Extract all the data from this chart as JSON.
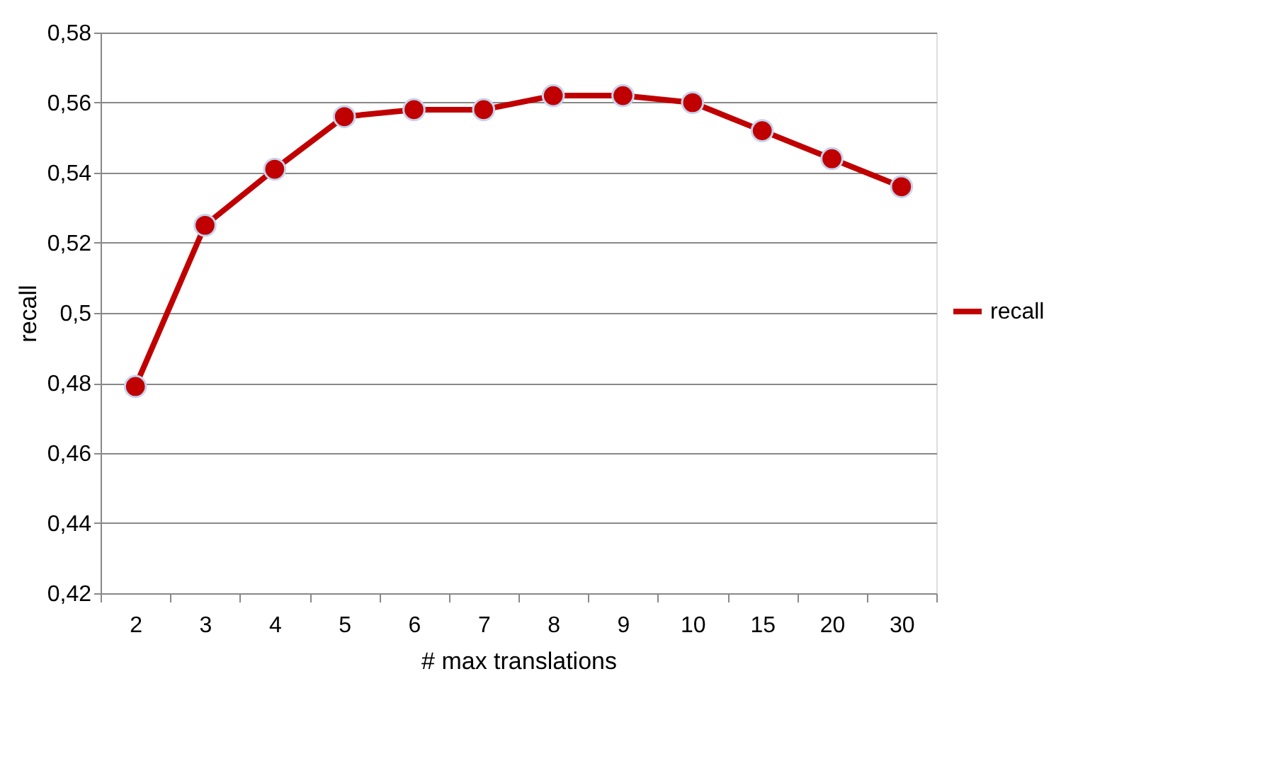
{
  "chart_data": {
    "type": "line",
    "xlabel": "# max translations",
    "ylabel": "recall",
    "categories": [
      "2",
      "3",
      "4",
      "5",
      "6",
      "7",
      "8",
      "9",
      "10",
      "15",
      "20",
      "30"
    ],
    "series": [
      {
        "name": "recall",
        "color": "#c00000",
        "values": [
          0.479,
          0.525,
          0.541,
          0.556,
          0.558,
          0.558,
          0.562,
          0.562,
          0.56,
          0.552,
          0.544,
          0.536
        ]
      }
    ],
    "ylim": [
      0.42,
      0.58
    ],
    "yticks": [
      {
        "value": 0.42,
        "label": "0,42"
      },
      {
        "value": 0.44,
        "label": "0,44"
      },
      {
        "value": 0.46,
        "label": "0,46"
      },
      {
        "value": 0.48,
        "label": "0,48"
      },
      {
        "value": 0.5,
        "label": "0,5"
      },
      {
        "value": 0.52,
        "label": "0,52"
      },
      {
        "value": 0.54,
        "label": "0,54"
      },
      {
        "value": 0.56,
        "label": "0,56"
      },
      {
        "value": 0.58,
        "label": "0,58"
      }
    ],
    "grid": "y",
    "legend": "right",
    "marker": "circle",
    "line_style": "solid"
  }
}
